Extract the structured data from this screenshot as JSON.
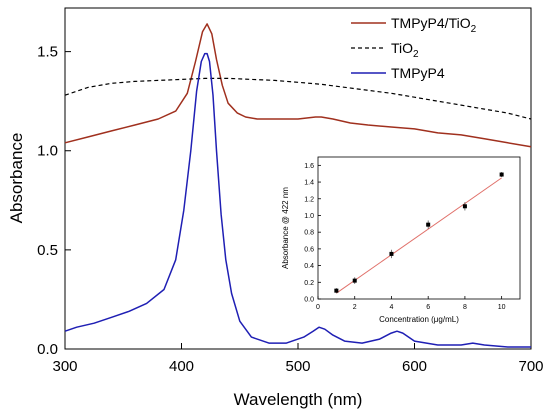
{
  "chart_data": [
    {
      "type": "line",
      "xlabel": "Wavelength (nm)",
      "ylabel": "Absorbance",
      "xlim": [
        300,
        700
      ],
      "ylim": [
        0.0,
        1.72
      ],
      "xticks": [
        300,
        400,
        500,
        600,
        700
      ],
      "yticks": [
        0.0,
        0.5,
        1.0,
        1.5
      ],
      "xtick_labels": [
        "300",
        "400",
        "500",
        "600",
        "700"
      ],
      "ytick_labels": [
        "0.0",
        "0.5",
        "1.0",
        "1.5"
      ],
      "grid": false,
      "legend_position": "top-right",
      "series": [
        {
          "name": "TMPyP4/TiO",
          "name_sub": "2",
          "color": "#a0301e",
          "style": "solid",
          "x": [
            300,
            320,
            340,
            360,
            380,
            395,
            405,
            412,
            418,
            422,
            426,
            430,
            435,
            440,
            448,
            455,
            465,
            480,
            500,
            515,
            520,
            530,
            545,
            560,
            580,
            600,
            620,
            640,
            660,
            680,
            700
          ],
          "y": [
            1.04,
            1.07,
            1.1,
            1.13,
            1.16,
            1.2,
            1.29,
            1.45,
            1.6,
            1.64,
            1.59,
            1.46,
            1.33,
            1.24,
            1.19,
            1.17,
            1.16,
            1.16,
            1.16,
            1.17,
            1.17,
            1.16,
            1.14,
            1.13,
            1.12,
            1.11,
            1.09,
            1.08,
            1.06,
            1.04,
            1.02
          ]
        },
        {
          "name": "TiO",
          "name_sub": "2",
          "color": "#000000",
          "style": "dashed",
          "x": [
            300,
            320,
            340,
            360,
            380,
            400,
            420,
            440,
            460,
            480,
            500,
            520,
            540,
            560,
            580,
            600,
            620,
            640,
            660,
            680,
            700
          ],
          "y": [
            1.28,
            1.32,
            1.34,
            1.35,
            1.355,
            1.36,
            1.365,
            1.365,
            1.36,
            1.355,
            1.345,
            1.335,
            1.32,
            1.305,
            1.29,
            1.27,
            1.25,
            1.23,
            1.21,
            1.19,
            1.16
          ]
        },
        {
          "name": "TMPyP4",
          "color": "#1f1fb4",
          "style": "solid",
          "x": [
            300,
            310,
            325,
            340,
            355,
            370,
            385,
            395,
            402,
            408,
            413,
            417,
            420,
            422,
            424,
            427,
            430,
            434,
            438,
            443,
            450,
            460,
            475,
            490,
            505,
            513,
            518,
            523,
            530,
            540,
            555,
            570,
            580,
            585,
            590,
            600,
            620,
            640,
            650,
            660,
            680,
            700
          ],
          "y": [
            0.09,
            0.11,
            0.13,
            0.16,
            0.19,
            0.23,
            0.3,
            0.45,
            0.7,
            1.0,
            1.3,
            1.45,
            1.49,
            1.49,
            1.45,
            1.28,
            1.0,
            0.68,
            0.45,
            0.28,
            0.14,
            0.06,
            0.03,
            0.03,
            0.06,
            0.09,
            0.11,
            0.1,
            0.07,
            0.04,
            0.03,
            0.05,
            0.08,
            0.09,
            0.08,
            0.04,
            0.02,
            0.02,
            0.03,
            0.02,
            0.01,
            0.01
          ]
        }
      ]
    },
    {
      "type": "scatter",
      "xlabel": "Concentration (μg/mL)",
      "ylabel": "Absorbance @ 422 nm",
      "xlim": [
        0,
        11
      ],
      "ylim": [
        0.0,
        1.7
      ],
      "xticks": [
        0,
        2,
        4,
        6,
        8,
        10
      ],
      "yticks": [
        0.0,
        0.2,
        0.4,
        0.6,
        0.8,
        1.0,
        1.2,
        1.4,
        1.6
      ],
      "xtick_labels": [
        "0",
        "2",
        "4",
        "6",
        "8",
        "10"
      ],
      "ytick_labels": [
        "0.0",
        "0.2",
        "0.4",
        "0.6",
        "0.8",
        "1.0",
        "1.2",
        "1.4",
        "1.6"
      ],
      "grid": false,
      "points": {
        "x": [
          1,
          2,
          4,
          6,
          8,
          10
        ],
        "y": [
          0.1,
          0.22,
          0.54,
          0.89,
          1.11,
          1.49
        ],
        "err": [
          0.03,
          0.04,
          0.05,
          0.05,
          0.05,
          0.03
        ]
      },
      "fit": {
        "x": [
          1,
          10
        ],
        "y": [
          0.07,
          1.45
        ],
        "color": "#e0706a"
      }
    }
  ]
}
